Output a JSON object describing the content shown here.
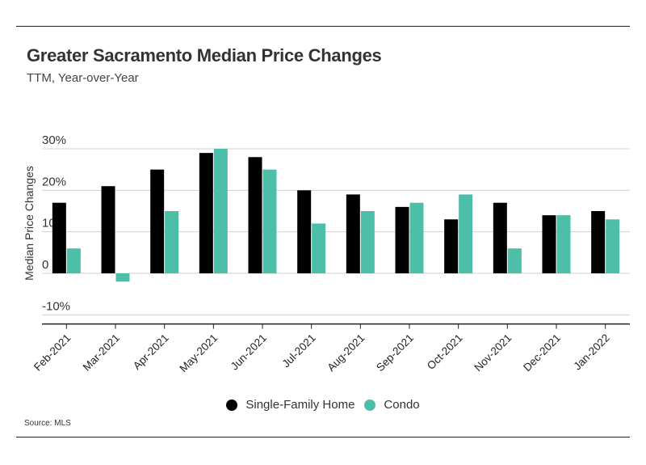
{
  "title": "Greater Sacramento Median Price Changes",
  "subtitle": "TTM, Year-over-Year",
  "source": "Source:  MLS",
  "chart_data": {
    "type": "bar",
    "title": "Greater Sacramento Median Price Changes",
    "subtitle": "TTM, Year-over-Year",
    "xlabel": "",
    "ylabel": "Median Price Changes",
    "categories": [
      "Feb-2021",
      "Mar-2021",
      "Apr-2021",
      "May-2021",
      "Jun-2021",
      "Jul-2021",
      "Aug-2021",
      "Sep-2021",
      "Oct-2021",
      "Nov-2021",
      "Dec-2021",
      "Jan-2022"
    ],
    "series": [
      {
        "name": "Single-Family Home",
        "color": "#000000",
        "values": [
          17,
          21,
          25,
          29,
          28,
          20,
          19,
          16,
          13,
          17,
          14,
          15
        ]
      },
      {
        "name": "Condo",
        "color": "#4dbfa8",
        "values": [
          6,
          -2,
          15,
          30,
          25,
          12,
          15,
          17,
          19,
          6,
          14,
          13
        ]
      }
    ],
    "ylim": [
      -12,
      32
    ],
    "yticks": [
      -10,
      0,
      10,
      20,
      30
    ],
    "ytick_labels": [
      "-10%",
      "0",
      "10%",
      "20%",
      "30%"
    ],
    "grid": true,
    "legend": "bottom-center"
  }
}
